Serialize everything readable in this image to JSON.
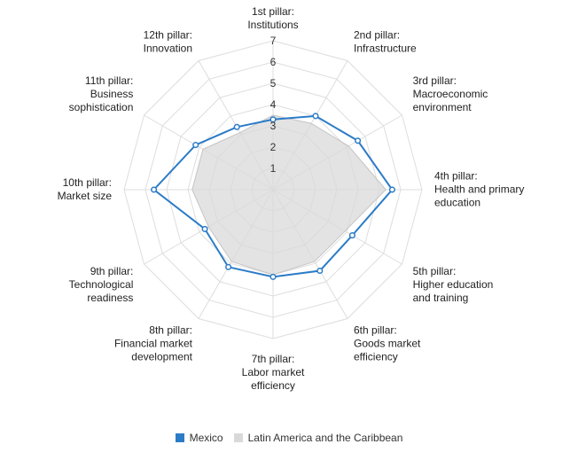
{
  "chart_data": {
    "type": "radar",
    "axes": [
      [
        "1st pillar:",
        "Institutions"
      ],
      [
        "2nd pillar:",
        "Infrastructure"
      ],
      [
        "3rd pillar:",
        "Macroeconomic",
        "environment"
      ],
      [
        "4th pillar:",
        "Health and primary",
        "education"
      ],
      [
        "5th pillar:",
        "Higher education",
        "and training"
      ],
      [
        "6th pillar:",
        "Goods market",
        "efficiency"
      ],
      [
        "7th pillar:",
        "Labor market",
        "efficiency"
      ],
      [
        "8th pillar:",
        "Financial market",
        "development"
      ],
      [
        "9th pillar:",
        "Technological",
        "readiness"
      ],
      [
        "10th pillar:",
        "Market size"
      ],
      [
        "11th pillar:",
        "Business",
        "sophistication"
      ],
      [
        "12th pillar:",
        "Innovation"
      ]
    ],
    "ticks": [
      "1",
      "2",
      "3",
      "4",
      "5",
      "6",
      "7"
    ],
    "range": [
      0,
      7
    ],
    "grid": true,
    "legend_position": "bottom",
    "series": [
      {
        "name": "Mexico",
        "color": "#2b7bc7",
        "values": [
          3.3,
          4.0,
          4.6,
          5.6,
          4.3,
          4.4,
          4.1,
          4.2,
          3.7,
          5.6,
          4.2,
          3.4
        ]
      },
      {
        "name": "Latin America and the Caribbean",
        "color": "#d9d9d9",
        "values": [
          3.5,
          3.6,
          4.1,
          5.3,
          3.9,
          3.9,
          4.0,
          3.9,
          3.5,
          3.8,
          3.8,
          3.1
        ]
      }
    ]
  }
}
